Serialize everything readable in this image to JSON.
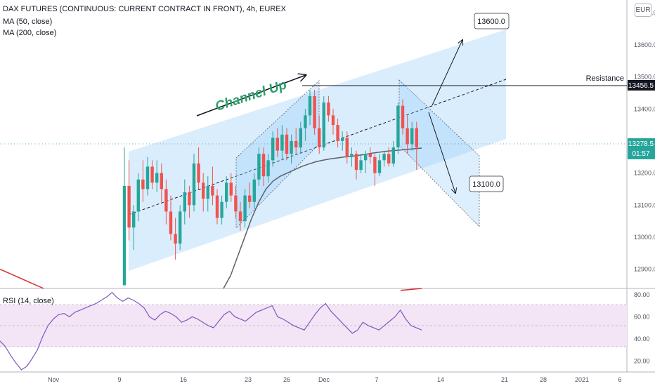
{
  "header": {
    "symbol": "DAX FUTURES (CONTINUOUS: CURRENT CONTRACT IN FRONT), 4h, EUREX",
    "ma50": "MA (50, close)",
    "ma200": "MA (200, close)",
    "currency": "EUR"
  },
  "colors": {
    "bull": "#26a69a",
    "bear": "#ef5350",
    "channel": "#bbdefb",
    "rsi": "#7e57c2",
    "rsi_band": "#f3e5f5",
    "ma50": "#5d606b",
    "ma200": "#d32f2f",
    "badge": "#26a69a"
  },
  "annotations": {
    "channel_up": "Channel Up",
    "target_up": "13600.0",
    "target_down": "13100.0",
    "resistance": "Resistance",
    "resistance_value": "13456.5",
    "last_price": "13278.5",
    "countdown": "01:57"
  },
  "rsi": {
    "label": "RSI (14, close)",
    "upper": 70,
    "lower": 30
  },
  "chart_data": {
    "type": "candlestick",
    "price_axis_ticks": [
      "13700.0",
      "13600.0",
      "13500.0",
      "13400.0",
      "13300.0",
      "13200.0",
      "13100.0",
      "13000.0",
      "12900.0"
    ],
    "rsi_axis_ticks": [
      "80.00",
      "60.00",
      "40.00",
      "20.00"
    ],
    "x_ticks": [
      "Nov",
      "9",
      "16",
      "23",
      "26",
      "Dec",
      "7",
      "14",
      "21",
      "28",
      "2021",
      "6"
    ],
    "ylim": [
      12840,
      13740
    ],
    "rsi_ylim": [
      10,
      85
    ],
    "resistance_level": 13456.5,
    "last_price": 13278.5,
    "candles": [
      {
        "o": 12850,
        "h": 13280,
        "l": 12850,
        "c": 13160
      },
      {
        "o": 13160,
        "h": 13240,
        "l": 12990,
        "c": 13030
      },
      {
        "o": 13030,
        "h": 13100,
        "l": 12960,
        "c": 13080
      },
      {
        "o": 13080,
        "h": 13200,
        "l": 13050,
        "c": 13180
      },
      {
        "o": 13180,
        "h": 13240,
        "l": 13110,
        "c": 13150
      },
      {
        "o": 13150,
        "h": 13250,
        "l": 13130,
        "c": 13220
      },
      {
        "o": 13220,
        "h": 13240,
        "l": 13150,
        "c": 13170
      },
      {
        "o": 13170,
        "h": 13240,
        "l": 13140,
        "c": 13200
      },
      {
        "o": 13200,
        "h": 13230,
        "l": 13110,
        "c": 13150
      },
      {
        "o": 13150,
        "h": 13180,
        "l": 13040,
        "c": 13080
      },
      {
        "o": 13080,
        "h": 13130,
        "l": 12990,
        "c": 13010
      },
      {
        "o": 13010,
        "h": 13060,
        "l": 12930,
        "c": 12980
      },
      {
        "o": 12980,
        "h": 13100,
        "l": 12960,
        "c": 13080
      },
      {
        "o": 13080,
        "h": 13180,
        "l": 13040,
        "c": 13140
      },
      {
        "o": 13140,
        "h": 13160,
        "l": 13060,
        "c": 13100
      },
      {
        "o": 13100,
        "h": 13260,
        "l": 13080,
        "c": 13230
      },
      {
        "o": 13230,
        "h": 13280,
        "l": 13150,
        "c": 13170
      },
      {
        "o": 13170,
        "h": 13200,
        "l": 13080,
        "c": 13120
      },
      {
        "o": 13120,
        "h": 13190,
        "l": 13080,
        "c": 13160
      },
      {
        "o": 13160,
        "h": 13220,
        "l": 13100,
        "c": 13130
      },
      {
        "o": 13130,
        "h": 13150,
        "l": 13040,
        "c": 13060
      },
      {
        "o": 13060,
        "h": 13130,
        "l": 13040,
        "c": 13110
      },
      {
        "o": 13110,
        "h": 13190,
        "l": 13090,
        "c": 13170
      },
      {
        "o": 13170,
        "h": 13200,
        "l": 13110,
        "c": 13130
      },
      {
        "o": 13130,
        "h": 13160,
        "l": 13060,
        "c": 13080
      },
      {
        "o": 13080,
        "h": 13110,
        "l": 13020,
        "c": 13050
      },
      {
        "o": 13050,
        "h": 13150,
        "l": 13030,
        "c": 13130
      },
      {
        "o": 13130,
        "h": 13170,
        "l": 13090,
        "c": 13110
      },
      {
        "o": 13110,
        "h": 13200,
        "l": 13090,
        "c": 13180
      },
      {
        "o": 13180,
        "h": 13280,
        "l": 13160,
        "c": 13260
      },
      {
        "o": 13260,
        "h": 13280,
        "l": 13160,
        "c": 13190
      },
      {
        "o": 13190,
        "h": 13260,
        "l": 13170,
        "c": 13240
      },
      {
        "o": 13240,
        "h": 13330,
        "l": 13220,
        "c": 13310
      },
      {
        "o": 13310,
        "h": 13340,
        "l": 13250,
        "c": 13270
      },
      {
        "o": 13270,
        "h": 13350,
        "l": 13240,
        "c": 13320
      },
      {
        "o": 13320,
        "h": 13340,
        "l": 13240,
        "c": 13260
      },
      {
        "o": 13260,
        "h": 13320,
        "l": 13230,
        "c": 13300
      },
      {
        "o": 13300,
        "h": 13340,
        "l": 13260,
        "c": 13280
      },
      {
        "o": 13280,
        "h": 13360,
        "l": 13260,
        "c": 13340
      },
      {
        "o": 13340,
        "h": 13400,
        "l": 13300,
        "c": 13380
      },
      {
        "o": 13380,
        "h": 13460,
        "l": 13350,
        "c": 13440
      },
      {
        "o": 13440,
        "h": 13460,
        "l": 13320,
        "c": 13340
      },
      {
        "o": 13340,
        "h": 13380,
        "l": 13260,
        "c": 13280
      },
      {
        "o": 13280,
        "h": 13440,
        "l": 13270,
        "c": 13420
      },
      {
        "o": 13420,
        "h": 13440,
        "l": 13360,
        "c": 13380
      },
      {
        "o": 13380,
        "h": 13400,
        "l": 13320,
        "c": 13350
      },
      {
        "o": 13350,
        "h": 13370,
        "l": 13280,
        "c": 13300
      },
      {
        "o": 13300,
        "h": 13330,
        "l": 13270,
        "c": 13310
      },
      {
        "o": 13310,
        "h": 13330,
        "l": 13230,
        "c": 13250
      },
      {
        "o": 13250,
        "h": 13280,
        "l": 13220,
        "c": 13260
      },
      {
        "o": 13260,
        "h": 13270,
        "l": 13180,
        "c": 13210
      },
      {
        "o": 13210,
        "h": 13260,
        "l": 13200,
        "c": 13240
      },
      {
        "o": 13240,
        "h": 13270,
        "l": 13200,
        "c": 13260
      },
      {
        "o": 13260,
        "h": 13280,
        "l": 13230,
        "c": 13250
      },
      {
        "o": 13250,
        "h": 13260,
        "l": 13160,
        "c": 13200
      },
      {
        "o": 13200,
        "h": 13260,
        "l": 13190,
        "c": 13240
      },
      {
        "o": 13240,
        "h": 13270,
        "l": 13220,
        "c": 13260
      },
      {
        "o": 13260,
        "h": 13280,
        "l": 13220,
        "c": 13230
      },
      {
        "o": 13230,
        "h": 13300,
        "l": 13220,
        "c": 13280
      },
      {
        "o": 13280,
        "h": 13420,
        "l": 13260,
        "c": 13410
      },
      {
        "o": 13410,
        "h": 13430,
        "l": 13320,
        "c": 13340
      },
      {
        "o": 13340,
        "h": 13380,
        "l": 13260,
        "c": 13290
      },
      {
        "o": 13290,
        "h": 13360,
        "l": 13270,
        "c": 13340
      },
      {
        "o": 13340,
        "h": 13360,
        "l": 13210,
        "c": 13280
      }
    ],
    "ma50": [
      12840,
      12880,
      12940,
      13000,
      13060,
      13110,
      13150,
      13175,
      13190,
      13200,
      13210,
      13220,
      13228,
      13235,
      13240,
      13244,
      13247,
      13250,
      13252,
      13255,
      13258,
      13262,
      13265,
      13268,
      13270,
      13272,
      13274,
      13276,
      13278
    ],
    "ma200": [
      12900,
      12888,
      12876,
      12864,
      12852,
      12840
    ],
    "ma200_tail": [
      12834,
      12840
    ],
    "rsi_values": [
      38,
      33,
      25,
      18,
      12,
      15,
      22,
      30,
      42,
      52,
      58,
      62,
      63,
      60,
      64,
      66,
      68,
      70,
      72,
      75,
      78,
      82,
      77,
      74,
      77,
      75,
      72,
      68,
      60,
      57,
      62,
      65,
      63,
      60,
      55,
      57,
      60,
      58,
      55,
      52,
      50,
      56,
      62,
      65,
      60,
      58,
      56,
      60,
      64,
      66,
      68,
      70,
      60,
      58,
      55,
      52,
      50,
      48,
      55,
      62,
      68,
      72,
      65,
      60,
      55,
      50,
      45,
      48,
      55,
      52,
      50,
      48,
      52,
      56,
      60,
      66,
      58,
      52,
      50,
      48
    ]
  }
}
